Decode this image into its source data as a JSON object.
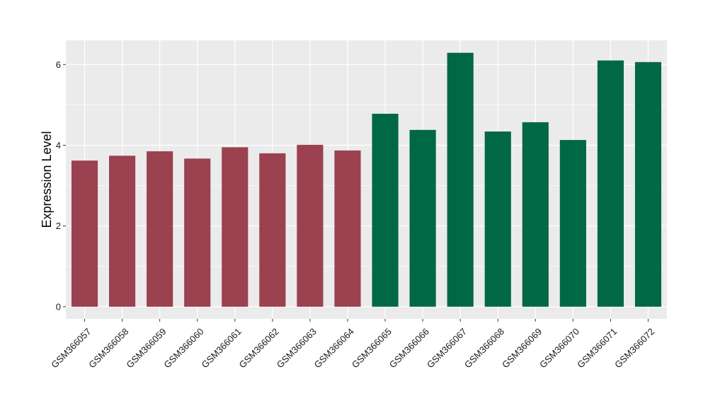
{
  "chart_data": {
    "type": "bar",
    "title": "",
    "xlabel": "",
    "ylabel": "Expression Level",
    "ylim": [
      -0.3,
      6.6
    ],
    "yticks": [
      0,
      2,
      4,
      6
    ],
    "grid": true,
    "categories": [
      "GSM366057",
      "GSM366058",
      "GSM366059",
      "GSM366060",
      "GSM366061",
      "GSM366062",
      "GSM366063",
      "GSM366064",
      "GSM366065",
      "GSM366066",
      "GSM366067",
      "GSM366068",
      "GSM366069",
      "GSM366070",
      "GSM366071",
      "GSM366072"
    ],
    "values": [
      3.62,
      3.74,
      3.85,
      3.67,
      3.95,
      3.8,
      4.01,
      3.87,
      4.78,
      4.38,
      6.29,
      4.34,
      4.57,
      4.13,
      6.1,
      6.06
    ],
    "bar_colors": [
      "#9b4150",
      "#9b4150",
      "#9b4150",
      "#9b4150",
      "#9b4150",
      "#9b4150",
      "#9b4150",
      "#9b4150",
      "#006844",
      "#006844",
      "#006844",
      "#006844",
      "#006844",
      "#006844",
      "#006844",
      "#006844"
    ],
    "panel_background": "#ebebeb",
    "grid_color": "#ffffff"
  }
}
